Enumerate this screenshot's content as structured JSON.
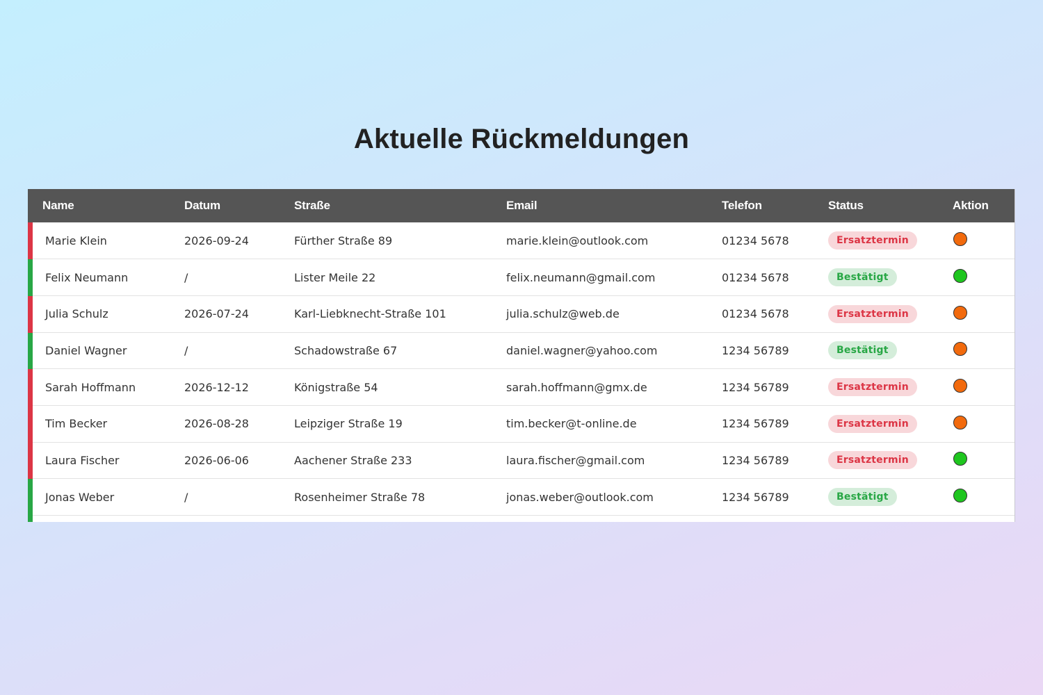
{
  "page": {
    "title": "Aktuelle Rückmeldungen"
  },
  "colors": {
    "header_bg": "#555555",
    "confirmed": "#28a745",
    "replacement": "#dc3545",
    "dot_orange": "#f26a0d",
    "dot_green": "#1fc61f"
  },
  "table": {
    "headers": {
      "name": "Name",
      "datum": "Datum",
      "strasse": "Straße",
      "email": "Email",
      "telefon": "Telefon",
      "status": "Status",
      "aktion": "Aktion"
    },
    "rows": [
      {
        "name": "Marie Klein",
        "datum": "2026-09-24",
        "strasse": "Fürther Straße 89",
        "email": "marie.klein@outlook.com",
        "telefon": "01234 5678",
        "status": "Ersatztermin",
        "status_type": "ers",
        "row_color": "#dc3545",
        "aktion_color": "#f26a0d",
        "aktion_icon": "status-dot-orange"
      },
      {
        "name": "Felix Neumann",
        "datum": "/",
        "strasse": "Lister Meile 22",
        "email": "felix.neumann@gmail.com",
        "telefon": "01234 5678",
        "status": "Bestätigt",
        "status_type": "bes",
        "row_color": "#28a745",
        "aktion_color": "#1fc61f",
        "aktion_icon": "status-dot-green"
      },
      {
        "name": "Julia Schulz",
        "datum": "2026-07-24",
        "strasse": "Karl-Liebknecht-Straße 101",
        "email": "julia.schulz@web.de",
        "telefon": "01234 5678",
        "status": "Ersatztermin",
        "status_type": "ers",
        "row_color": "#dc3545",
        "aktion_color": "#f26a0d",
        "aktion_icon": "status-dot-orange"
      },
      {
        "name": "Daniel Wagner",
        "datum": "/",
        "strasse": "Schadowstraße 67",
        "email": "daniel.wagner@yahoo.com",
        "telefon": "1234 56789",
        "status": "Bestätigt",
        "status_type": "bes",
        "row_color": "#28a745",
        "aktion_color": "#f26a0d",
        "aktion_icon": "status-dot-orange"
      },
      {
        "name": "Sarah Hoffmann",
        "datum": "2026-12-12",
        "strasse": "Königstraße 54",
        "email": "sarah.hoffmann@gmx.de",
        "telefon": "1234 56789",
        "status": "Ersatztermin",
        "status_type": "ers",
        "row_color": "#dc3545",
        "aktion_color": "#f26a0d",
        "aktion_icon": "status-dot-orange"
      },
      {
        "name": "Tim Becker",
        "datum": "2026-08-28",
        "strasse": "Leipziger Straße 19",
        "email": "tim.becker@t-online.de",
        "telefon": "1234 56789",
        "status": "Ersatztermin",
        "status_type": "ers",
        "row_color": "#dc3545",
        "aktion_color": "#f26a0d",
        "aktion_icon": "status-dot-orange"
      },
      {
        "name": "Laura Fischer",
        "datum": "2026-06-06",
        "strasse": "Aachener Straße 233",
        "email": "laura.fischer@gmail.com",
        "telefon": "1234 56789",
        "status": "Ersatztermin",
        "status_type": "ers",
        "row_color": "#dc3545",
        "aktion_color": "#1fc61f",
        "aktion_icon": "status-dot-green"
      },
      {
        "name": "Jonas Weber",
        "datum": "/",
        "strasse": "Rosenheimer Straße 78",
        "email": "jonas.weber@outlook.com",
        "telefon": "1234 56789",
        "status": "Bestätigt",
        "status_type": "bes",
        "row_color": "#28a745",
        "aktion_color": "#1fc61f",
        "aktion_icon": "status-dot-green"
      }
    ]
  }
}
